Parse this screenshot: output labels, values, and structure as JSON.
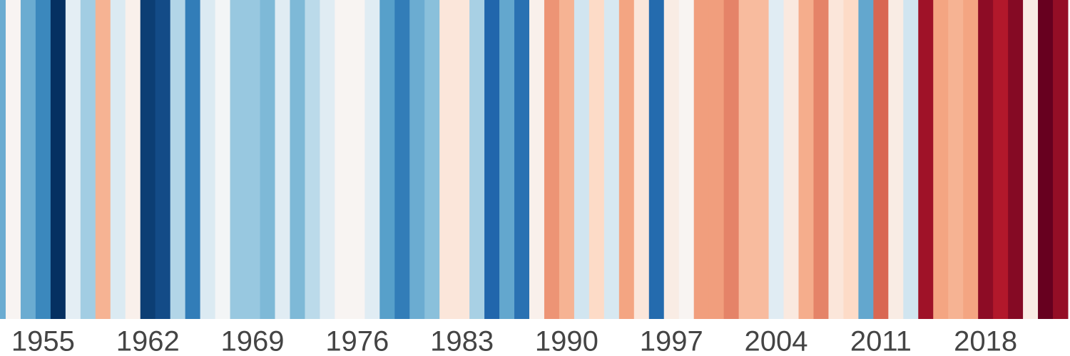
{
  "chart_data": {
    "type": "stripes",
    "x": [
      1952,
      1953,
      1954,
      1955,
      1956,
      1957,
      1958,
      1959,
      1960,
      1961,
      1962,
      1963,
      1964,
      1965,
      1966,
      1967,
      1968,
      1969,
      1970,
      1971,
      1972,
      1973,
      1974,
      1975,
      1976,
      1977,
      1978,
      1979,
      1980,
      1981,
      1982,
      1983,
      1984,
      1985,
      1986,
      1987,
      1988,
      1989,
      1990,
      1991,
      1992,
      1993,
      1994,
      1995,
      1996,
      1997,
      1998,
      1999,
      2000,
      2001,
      2002,
      2003,
      2004,
      2005,
      2006,
      2007,
      2008,
      2009,
      2010,
      2011,
      2012,
      2013,
      2014,
      2015,
      2016,
      2017,
      2018,
      2019,
      2020,
      2021,
      2022,
      2023
    ],
    "values": [
      -0.5,
      0.02,
      -0.5,
      -0.65,
      -1.0,
      -0.1,
      -0.35,
      0.35,
      -0.15,
      0.05,
      -0.95,
      -0.9,
      -0.3,
      -0.7,
      -0.15,
      -0.02,
      -0.38,
      -0.38,
      -0.45,
      -0.12,
      -0.45,
      -0.27,
      -0.12,
      0.02,
      0.02,
      -0.12,
      -0.55,
      -0.7,
      -0.5,
      -0.42,
      0.12,
      0.12,
      -0.33,
      -0.8,
      -0.52,
      -0.75,
      0.05,
      0.45,
      0.35,
      -0.2,
      0.2,
      -0.17,
      0.4,
      0.12,
      -0.78,
      0.08,
      0.02,
      0.42,
      0.42,
      0.5,
      0.32,
      0.32,
      -0.12,
      0.1,
      0.37,
      0.5,
      0.12,
      0.2,
      -0.52,
      0.58,
      0.08,
      -0.2,
      0.85,
      0.4,
      0.35,
      0.4,
      0.9,
      0.8,
      0.92,
      0.08,
      1.0,
      0.88
    ],
    "colormap": [
      "#053061",
      "#2166ac",
      "#4393c3",
      "#92c5de",
      "#d1e5f0",
      "#f7f7f7",
      "#fddbc7",
      "#f4a582",
      "#d6604d",
      "#b2182b",
      "#67001f"
    ],
    "vlim": [
      -1,
      1
    ],
    "xlim": [
      1952.62,
      2024
    ],
    "xticks": [
      1955,
      1962,
      1969,
      1976,
      1983,
      1990,
      1997,
      2004,
      2011,
      2018
    ]
  }
}
